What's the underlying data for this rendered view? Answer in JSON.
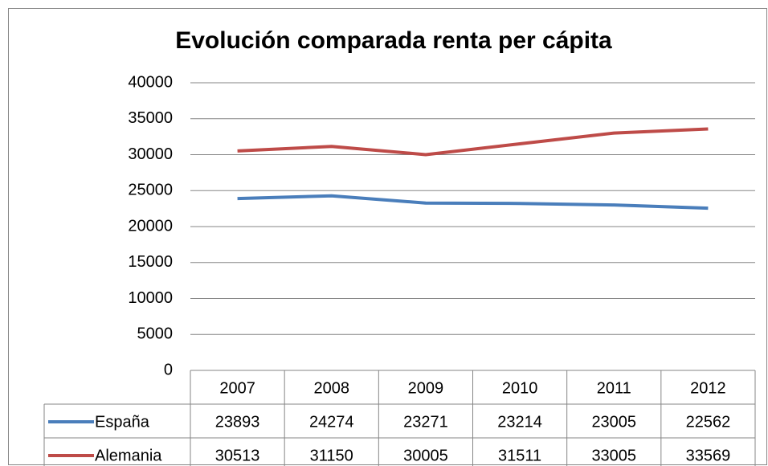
{
  "chart_data": {
    "type": "line",
    "title": "Evolución comparada renta per cápita",
    "categories": [
      "2007",
      "2008",
      "2009",
      "2010",
      "2011",
      "2012"
    ],
    "series": [
      {
        "name": "España",
        "color": "#4a7ebb",
        "values": [
          23893,
          24274,
          23271,
          23214,
          23005,
          22562
        ]
      },
      {
        "name": "Alemania",
        "color": "#be4b48",
        "values": [
          30513,
          31150,
          30005,
          31511,
          33005,
          33569
        ]
      }
    ],
    "ylim": [
      0,
      40000
    ],
    "yticks": [
      0,
      5000,
      10000,
      15000,
      20000,
      25000,
      30000,
      35000,
      40000
    ],
    "grid": true
  }
}
